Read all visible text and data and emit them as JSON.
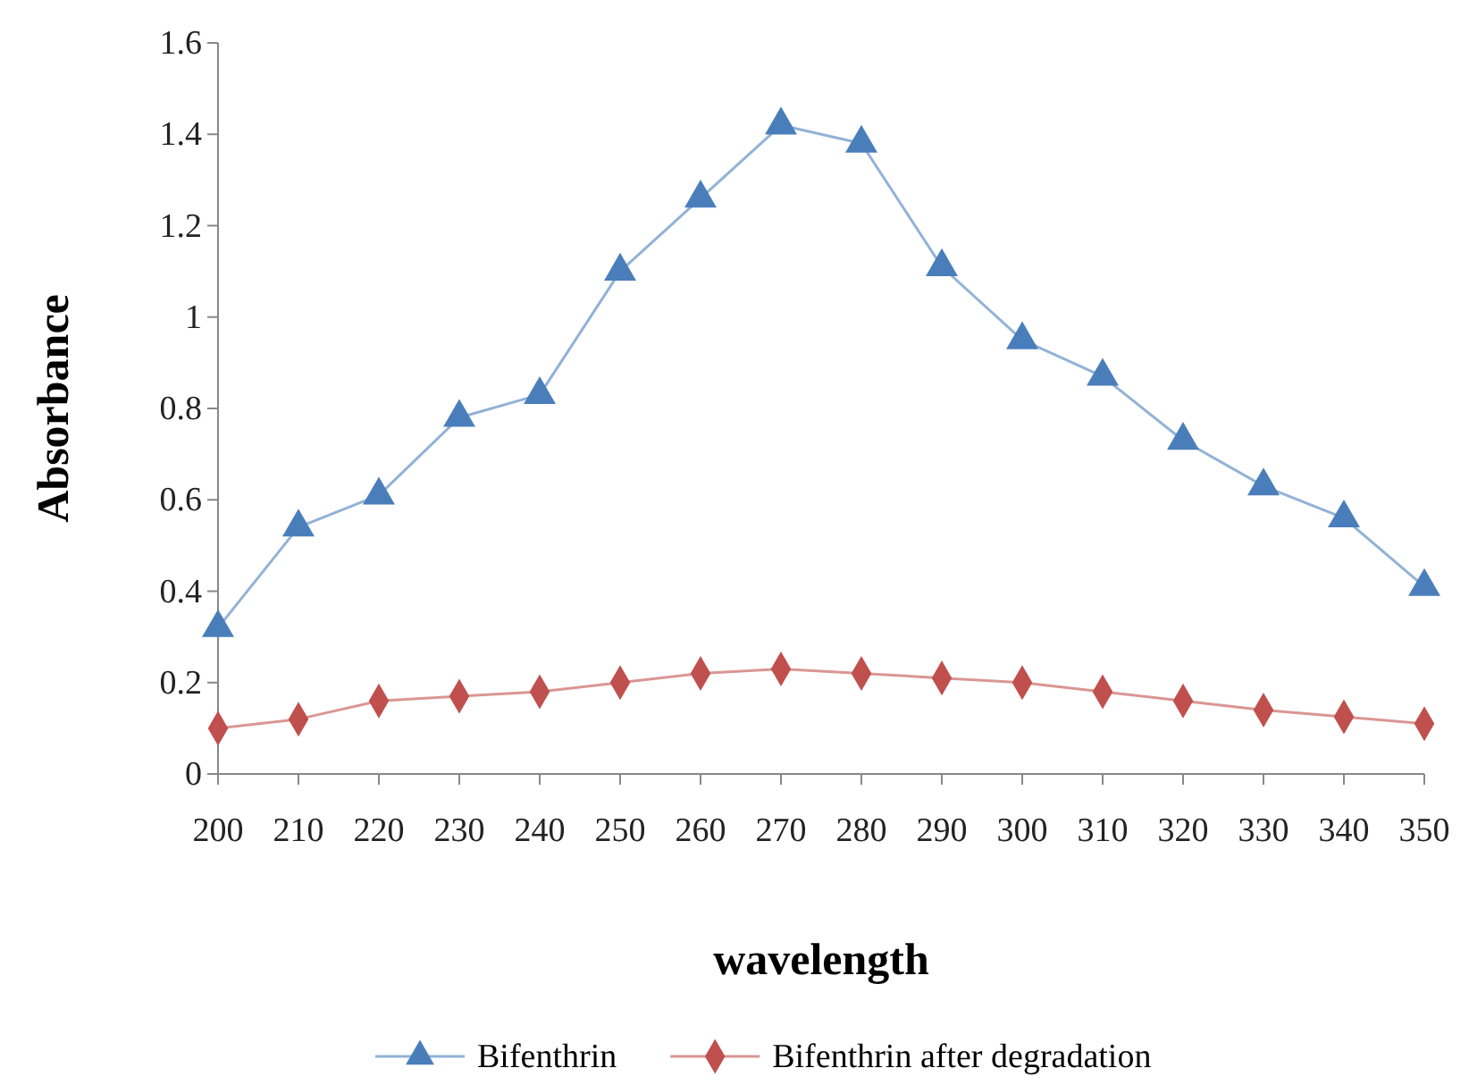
{
  "chart_data": {
    "type": "line",
    "xlabel": "wavelength",
    "ylabel": "Absorbance",
    "categories": [
      "200",
      "210",
      "220",
      "230",
      "240",
      "250",
      "260",
      "270",
      "280",
      "290",
      "300",
      "310",
      "320",
      "330",
      "340",
      "350"
    ],
    "ylim": [
      0,
      1.6
    ],
    "yticks": [
      0,
      0.2,
      0.4,
      0.6,
      0.8,
      1,
      1.2,
      1.4,
      1.6
    ],
    "grid": false,
    "legend": "bottom",
    "line_style": "solid",
    "series": [
      {
        "name": "Bifenthrin",
        "color": "#4a7ebb",
        "marker": "triangle",
        "values": [
          0.32,
          0.54,
          0.61,
          0.78,
          0.83,
          1.1,
          1.26,
          1.42,
          1.38,
          1.11,
          0.95,
          0.87,
          0.73,
          0.63,
          0.56,
          0.41
        ]
      },
      {
        "name": "Bifenthrin after degradation",
        "color": "#c0504d",
        "marker": "diamond",
        "values": [
          0.1,
          0.12,
          0.16,
          0.17,
          0.18,
          0.2,
          0.22,
          0.23,
          0.22,
          0.21,
          0.2,
          0.18,
          0.16,
          0.14,
          0.125,
          0.11
        ]
      }
    ]
  }
}
